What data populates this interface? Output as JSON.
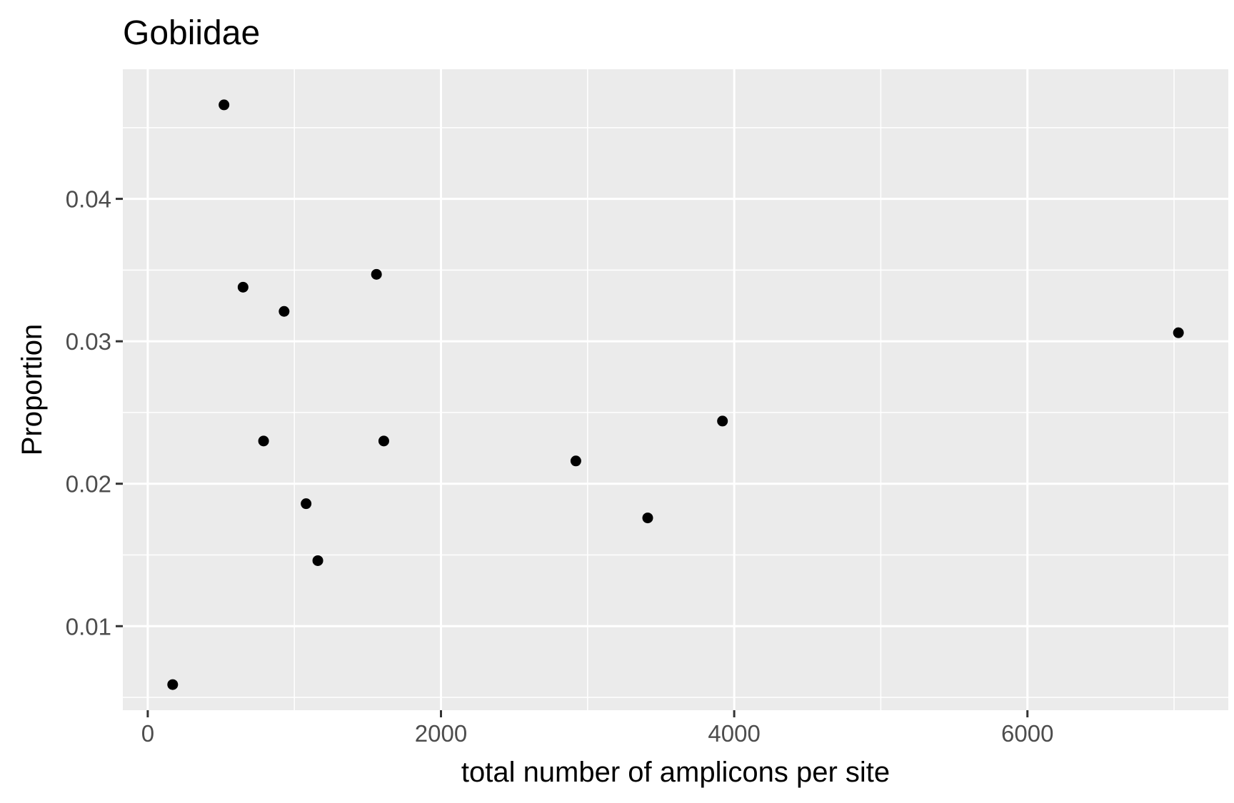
{
  "chart_data": {
    "type": "scatter",
    "title": "Gobiidae",
    "xlabel": "total number of amplicons per site",
    "ylabel": "Proportion",
    "xlim": [
      -170,
      7370
    ],
    "ylim": [
      0.0041,
      0.0491
    ],
    "x_ticks": [
      0,
      2000,
      4000,
      6000
    ],
    "x_tick_labels": [
      "0",
      "2000",
      "4000",
      "6000"
    ],
    "y_ticks": [
      0.01,
      0.02,
      0.03,
      0.04
    ],
    "y_tick_labels": [
      "0.01",
      "0.02",
      "0.03",
      "0.04"
    ],
    "grid": true,
    "panel_background": "#ebebeb",
    "grid_color": "#ffffff",
    "point_color": "#000000",
    "points": [
      {
        "x": 170,
        "y": 0.0059
      },
      {
        "x": 520,
        "y": 0.0466
      },
      {
        "x": 650,
        "y": 0.0338
      },
      {
        "x": 790,
        "y": 0.023
      },
      {
        "x": 930,
        "y": 0.0321
      },
      {
        "x": 1080,
        "y": 0.0186
      },
      {
        "x": 1160,
        "y": 0.0146
      },
      {
        "x": 1560,
        "y": 0.0347
      },
      {
        "x": 1610,
        "y": 0.023
      },
      {
        "x": 2920,
        "y": 0.0216
      },
      {
        "x": 3410,
        "y": 0.0176
      },
      {
        "x": 3920,
        "y": 0.0244
      },
      {
        "x": 7030,
        "y": 0.0306
      }
    ]
  }
}
